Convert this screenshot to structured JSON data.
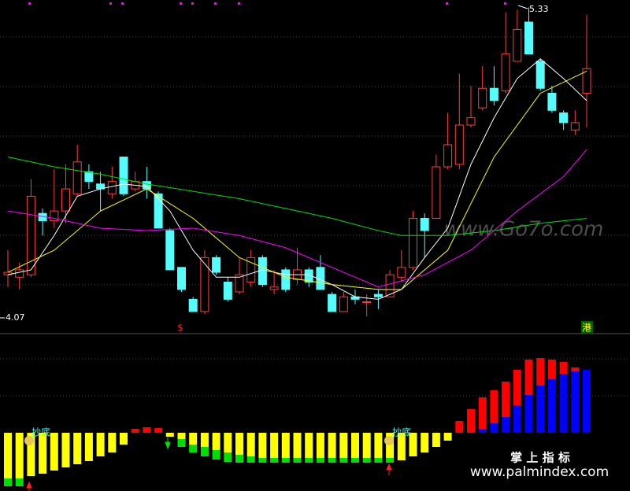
{
  "chart_data": [
    {
      "type": "candlestick",
      "ylim": [
        4.0,
        5.36
      ],
      "open": [
        4.24,
        4.23,
        4.24,
        4.49,
        4.46,
        4.5,
        4.57,
        4.66,
        4.61,
        4.57,
        4.72,
        4.59,
        4.62,
        4.57,
        4.42,
        4.27,
        4.14,
        4.09,
        4.31,
        4.21,
        4.17,
        4.21,
        4.31,
        4.18,
        4.26,
        4.22,
        4.26,
        4.27,
        4.16,
        4.09,
        4.15,
        4.13,
        4.16,
        4.15,
        4.23,
        4.27,
        4.47,
        4.47,
        4.68,
        4.69,
        4.85,
        4.92,
        5.0,
        4.99,
        5.11,
        5.27,
        5.11,
        4.98,
        4.9,
        4.83,
        4.98
      ],
      "high": [
        4.34,
        4.29,
        4.63,
        4.51,
        4.67,
        4.69,
        4.77,
        4.69,
        4.66,
        4.68,
        4.72,
        4.66,
        4.68,
        4.58,
        4.43,
        4.27,
        4.15,
        4.34,
        4.32,
        4.23,
        4.31,
        4.34,
        4.32,
        4.26,
        4.27,
        4.35,
        4.27,
        4.32,
        4.17,
        4.17,
        4.18,
        4.16,
        4.18,
        4.26,
        4.34,
        4.5,
        4.49,
        4.73,
        4.9,
        5.06,
        5.01,
        5.09,
        5.09,
        5.31,
        5.32,
        5.33,
        5.12,
        5.01,
        4.91,
        4.91,
        5.3
      ],
      "low": [
        4.19,
        4.18,
        4.23,
        4.4,
        4.43,
        4.45,
        4.56,
        4.59,
        4.5,
        4.55,
        4.56,
        4.58,
        4.55,
        4.43,
        4.26,
        4.17,
        4.09,
        4.08,
        4.24,
        4.13,
        4.16,
        4.19,
        4.19,
        4.16,
        4.17,
        4.2,
        4.19,
        4.18,
        4.09,
        4.09,
        4.12,
        4.07,
        4.1,
        4.15,
        4.21,
        4.26,
        4.31,
        4.47,
        4.67,
        4.67,
        4.84,
        4.91,
        4.93,
        4.98,
        5.11,
        5.14,
        4.99,
        4.9,
        4.83,
        4.81,
        4.84
      ],
      "close": [
        4.25,
        4.26,
        4.56,
        4.46,
        4.5,
        4.59,
        4.7,
        4.62,
        4.59,
        4.62,
        4.57,
        4.62,
        4.59,
        4.43,
        4.26,
        4.18,
        4.09,
        4.31,
        4.25,
        4.14,
        4.24,
        4.31,
        4.2,
        4.19,
        4.18,
        4.26,
        4.21,
        4.18,
        4.09,
        4.15,
        4.14,
        4.13,
        4.15,
        4.24,
        4.27,
        4.47,
        4.42,
        4.68,
        4.77,
        4.85,
        4.88,
        5.0,
        4.95,
        5.14,
        5.24,
        5.14,
        5.0,
        4.91,
        4.86,
        4.86,
        5.08
      ],
      "up_color": "#ff3c3c",
      "down_color": "#54fcfc",
      "series": [
        {
          "color": "#ffffff",
          "x": [
            0,
            2,
            4,
            6,
            8,
            10,
            12,
            14,
            16,
            18,
            20,
            22,
            24,
            26,
            28,
            30,
            32,
            34,
            36,
            38,
            40,
            42,
            44,
            46,
            48,
            50
          ],
          "values": [
            4.24,
            4.26,
            4.4,
            4.56,
            4.59,
            4.61,
            4.6,
            4.5,
            4.34,
            4.23,
            4.23,
            4.26,
            4.24,
            4.24,
            4.2,
            4.15,
            4.14,
            4.18,
            4.31,
            4.43,
            4.69,
            4.88,
            5.04,
            5.12,
            5.04,
            4.95
          ]
        },
        {
          "color": "#ffff00",
          "x": [
            0,
            4,
            8,
            12,
            16,
            20,
            24,
            28,
            32,
            34,
            38,
            42,
            46,
            50
          ],
          "values": [
            4.25,
            4.34,
            4.5,
            4.59,
            4.47,
            4.31,
            4.23,
            4.2,
            4.18,
            4.18,
            4.34,
            4.72,
            4.98,
            5.07
          ]
        },
        {
          "color": "#ff00ff",
          "x": [
            0,
            4,
            8,
            12,
            16,
            20,
            24,
            28,
            32,
            36,
            40,
            44,
            48,
            50
          ],
          "values": [
            4.5,
            4.47,
            4.43,
            4.42,
            4.43,
            4.4,
            4.35,
            4.27,
            4.19,
            4.24,
            4.34,
            4.5,
            4.64,
            4.75
          ]
        },
        {
          "color": "#00e000",
          "x": [
            0,
            4,
            8,
            12,
            16,
            20,
            24,
            28,
            32,
            34,
            38,
            42,
            46,
            50
          ],
          "values": [
            4.72,
            4.68,
            4.65,
            4.61,
            4.58,
            4.55,
            4.51,
            4.47,
            4.42,
            4.4,
            4.4,
            4.42,
            4.45,
            4.47
          ]
        }
      ],
      "high_label": 5.33,
      "low_label": 4.07,
      "signal_label": "$",
      "market_badge": "港",
      "watermark": "www.Go7o.com"
    },
    {
      "type": "bar",
      "y2lim": [
        -74,
        124
      ],
      "series": [
        {
          "color": "#ffff00",
          "values": [
            -58,
            -58,
            -55,
            -52,
            -48,
            -44,
            -40,
            -36,
            -30,
            -25,
            -15,
            0,
            0,
            0,
            -5,
            -8,
            -15,
            -18,
            -22,
            -25,
            -28,
            -30,
            -32,
            -32,
            -32,
            -32,
            -32,
            -32,
            -32,
            -32,
            -32,
            -32,
            -32,
            -32,
            -35,
            -30,
            -25,
            -18,
            -10,
            0,
            0,
            0,
            0,
            0,
            0,
            0,
            0,
            0,
            0,
            0,
            0
          ]
        },
        {
          "color": "#00e000",
          "values": [
            -10,
            -10,
            0,
            0,
            0,
            0,
            0,
            0,
            0,
            0,
            0,
            0,
            0,
            0,
            0,
            -10,
            -10,
            -12,
            -12,
            -12,
            -10,
            -8,
            -6,
            -6,
            -6,
            -6,
            -6,
            -6,
            -6,
            -6,
            -6,
            -6,
            -6,
            -6,
            0,
            0,
            0,
            0,
            0,
            0,
            0,
            0,
            0,
            0,
            0,
            0,
            0,
            0,
            0,
            0,
            0
          ]
        },
        {
          "color": "#0000ff",
          "values": [
            0,
            0,
            0,
            0,
            0,
            0,
            0,
            0,
            0,
            0,
            0,
            0,
            0,
            0,
            0,
            0,
            0,
            0,
            0,
            0,
            0,
            0,
            0,
            0,
            0,
            0,
            0,
            0,
            0,
            0,
            0,
            0,
            0,
            0,
            0,
            0,
            0,
            0,
            0,
            0,
            0,
            5,
            12,
            20,
            35,
            48,
            60,
            68,
            75,
            78,
            80
          ]
        },
        {
          "color": "#ff0000",
          "values": [
            0,
            0,
            0,
            0,
            0,
            0,
            0,
            0,
            0,
            0,
            0,
            5,
            7,
            6,
            0,
            0,
            0,
            0,
            0,
            0,
            0,
            0,
            0,
            0,
            0,
            0,
            0,
            0,
            0,
            0,
            0,
            0,
            0,
            0,
            0,
            0,
            0,
            0,
            0,
            15,
            30,
            40,
            42,
            45,
            45,
            45,
            35,
            25,
            15,
            5,
            0
          ]
        }
      ],
      "signal_labels": [
        "抄底",
        "抄底"
      ],
      "brand": "掌 上 指 标",
      "website": "www.palmindex.com"
    }
  ]
}
